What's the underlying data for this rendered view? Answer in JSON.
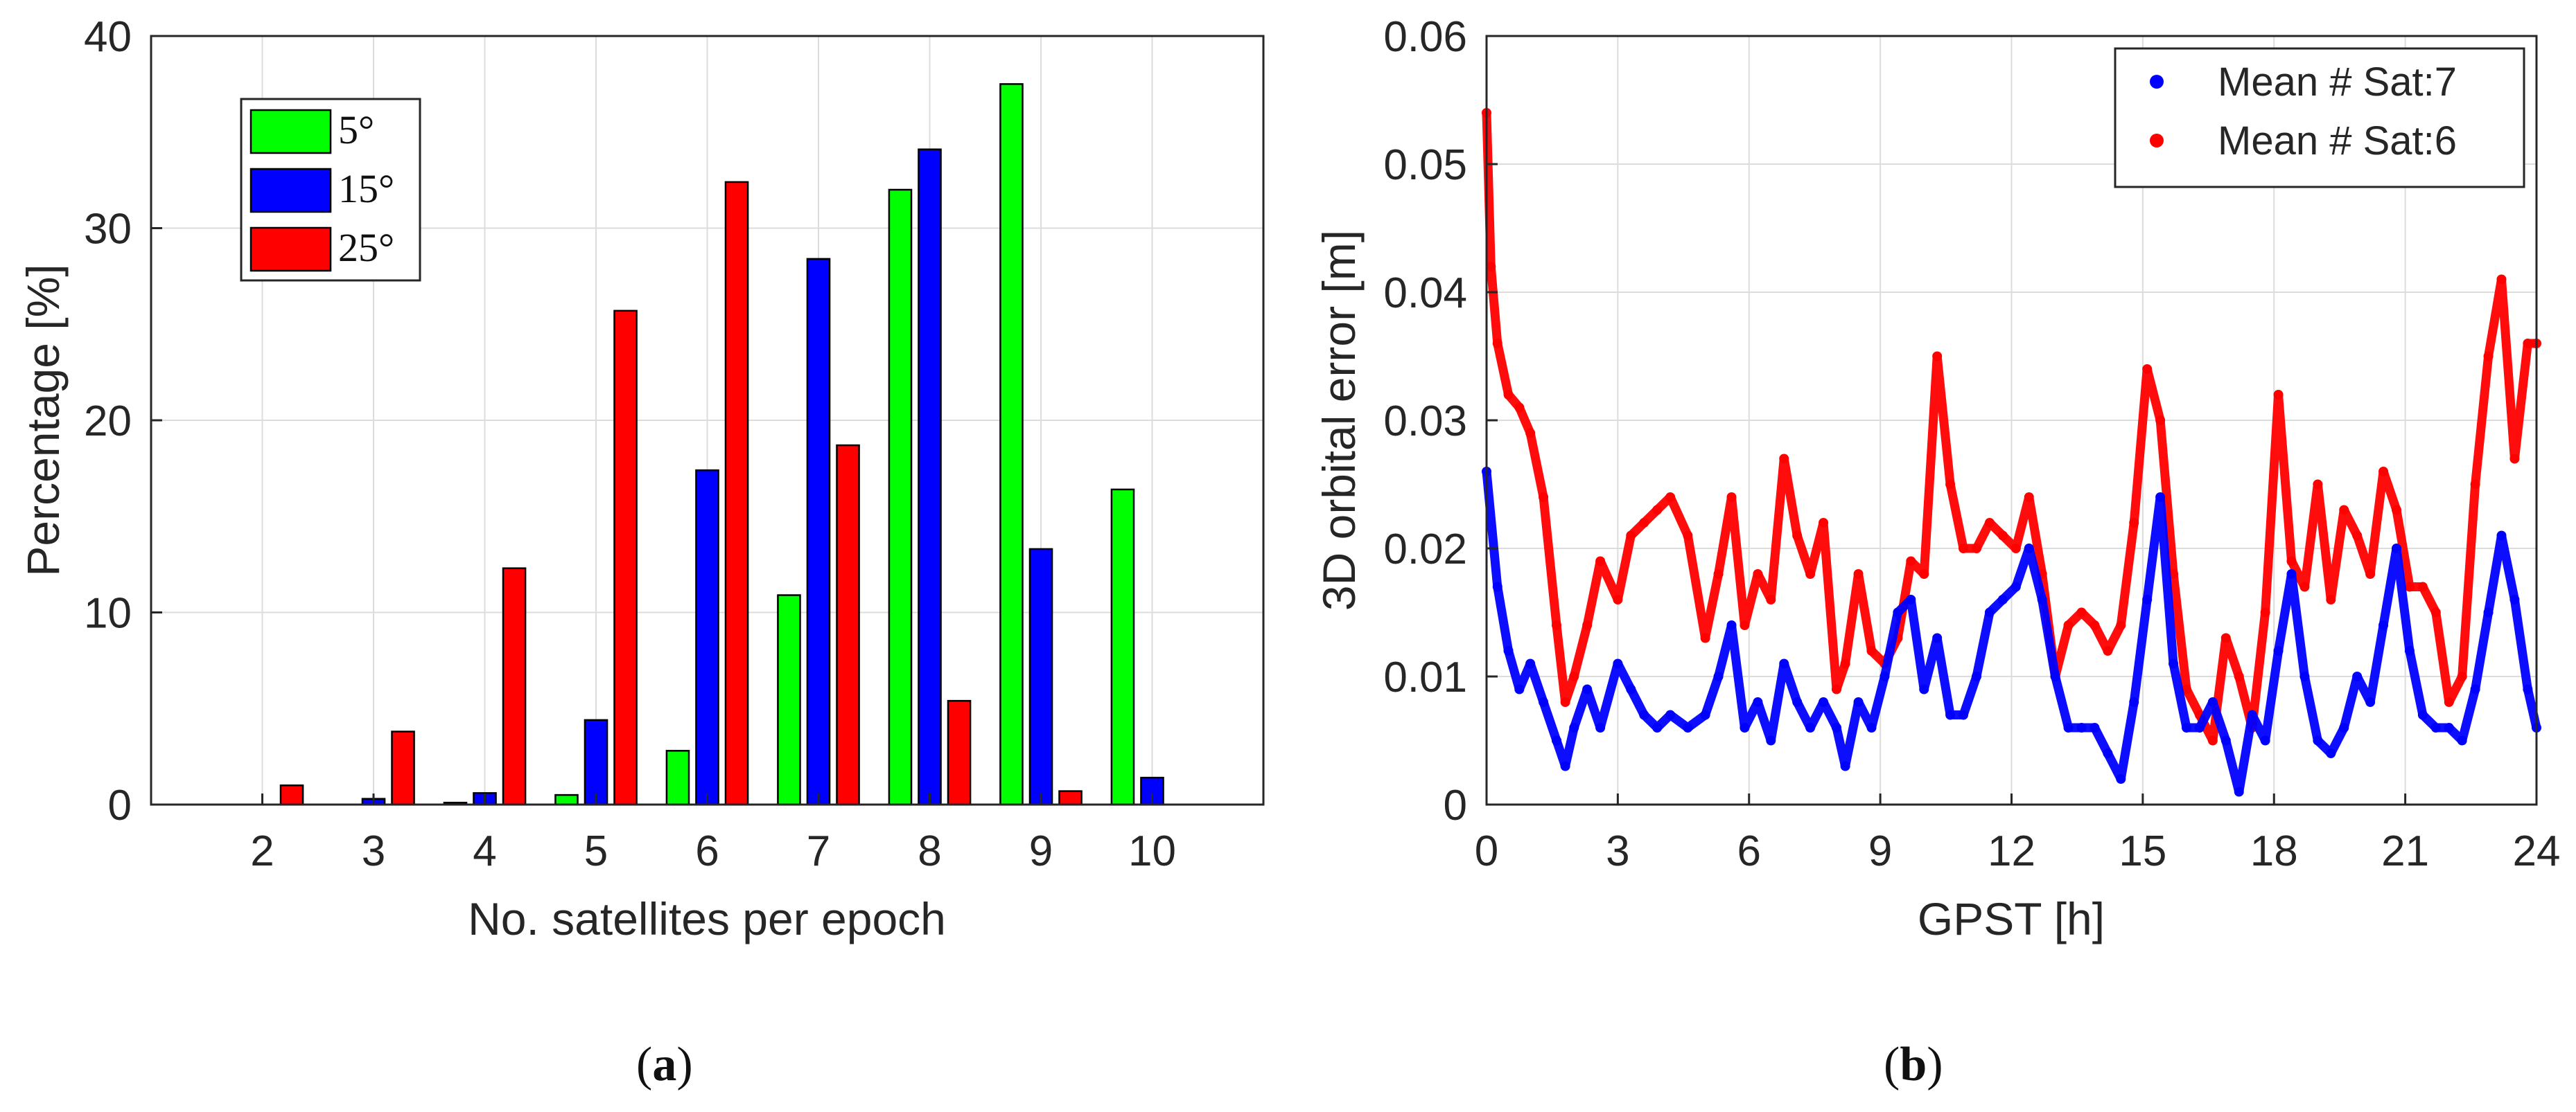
{
  "chart_data": [
    {
      "type": "bar",
      "categories": [
        "2",
        "3",
        "4",
        "5",
        "6",
        "7",
        "8",
        "9",
        "10"
      ],
      "series": [
        {
          "name": "5°",
          "color": "#00ff00",
          "values": [
            0,
            0,
            0.1,
            0.5,
            2.8,
            10.9,
            32.0,
            37.5,
            16.4
          ]
        },
        {
          "name": "15°",
          "color": "#0000ff",
          "values": [
            0,
            0.3,
            0.6,
            4.4,
            17.4,
            28.4,
            34.1,
            13.3,
            1.4
          ]
        },
        {
          "name": "25°",
          "color": "#ff0000",
          "values": [
            1.0,
            3.8,
            12.3,
            25.7,
            32.4,
            18.7,
            5.4,
            0.7,
            0
          ]
        }
      ],
      "xlabel": "No. satellites per epoch",
      "ylabel": "Percentage [%]",
      "ylim": [
        0,
        40
      ],
      "yticks": [
        "0",
        "10",
        "20",
        "30",
        "40"
      ],
      "grid": true,
      "legend": "top-left",
      "panel_label": {
        "open": "(",
        "letter": "a",
        "close": ")"
      }
    },
    {
      "type": "scatter",
      "xlabel": "GPST [h]",
      "ylabel": "3D orbital error [m]",
      "xlim": [
        0,
        24
      ],
      "ylim": [
        0,
        0.06
      ],
      "xticks": [
        "0",
        "3",
        "6",
        "9",
        "12",
        "15",
        "18",
        "21",
        "24"
      ],
      "yticks": [
        "0",
        "0.01",
        "0.02",
        "0.03",
        "0.04",
        "0.05",
        "0.06"
      ],
      "grid": true,
      "legend": "top-right",
      "series": [
        {
          "name": "Mean # Sat:7",
          "color": "#0000ff",
          "x": [
            0,
            0.25,
            0.5,
            0.75,
            1.0,
            1.3,
            1.6,
            1.8,
            2.0,
            2.3,
            2.6,
            3.0,
            3.3,
            3.6,
            3.9,
            4.2,
            4.6,
            5.0,
            5.3,
            5.6,
            5.9,
            6.2,
            6.5,
            6.8,
            7.1,
            7.4,
            7.7,
            8.0,
            8.2,
            8.5,
            8.8,
            9.1,
            9.4,
            9.7,
            10.0,
            10.3,
            10.6,
            10.9,
            11.2,
            11.5,
            11.8,
            12.1,
            12.4,
            12.7,
            13.0,
            13.3,
            13.6,
            13.9,
            14.2,
            14.5,
            14.8,
            15.1,
            15.4,
            15.7,
            16.0,
            16.3,
            16.6,
            16.9,
            17.2,
            17.5,
            17.8,
            18.1,
            18.4,
            18.7,
            19.0,
            19.3,
            19.6,
            19.9,
            20.2,
            20.5,
            20.8,
            21.1,
            21.4,
            21.7,
            22.0,
            22.3,
            22.6,
            22.9,
            23.2,
            23.5,
            23.8,
            24.0
          ],
          "y": [
            0.026,
            0.017,
            0.012,
            0.009,
            0.011,
            0.008,
            0.005,
            0.003,
            0.006,
            0.009,
            0.006,
            0.011,
            0.009,
            0.007,
            0.006,
            0.007,
            0.006,
            0.007,
            0.01,
            0.014,
            0.006,
            0.008,
            0.005,
            0.011,
            0.008,
            0.006,
            0.008,
            0.006,
            0.003,
            0.008,
            0.006,
            0.01,
            0.015,
            0.016,
            0.009,
            0.013,
            0.007,
            0.007,
            0.01,
            0.015,
            0.016,
            0.017,
            0.02,
            0.016,
            0.01,
            0.006,
            0.006,
            0.006,
            0.004,
            0.002,
            0.008,
            0.016,
            0.024,
            0.011,
            0.006,
            0.006,
            0.008,
            0.005,
            0.001,
            0.007,
            0.005,
            0.012,
            0.018,
            0.01,
            0.005,
            0.004,
            0.006,
            0.01,
            0.008,
            0.014,
            0.02,
            0.012,
            0.007,
            0.006,
            0.006,
            0.005,
            0.009,
            0.015,
            0.021,
            0.016,
            0.009,
            0.006
          ]
        },
        {
          "name": "Mean # Sat:6",
          "color": "#ff0000",
          "x": [
            0,
            0.1,
            0.25,
            0.5,
            0.75,
            1.0,
            1.3,
            1.6,
            1.8,
            2.0,
            2.3,
            2.6,
            3.0,
            3.3,
            3.6,
            3.9,
            4.2,
            4.6,
            5.0,
            5.3,
            5.6,
            5.9,
            6.2,
            6.5,
            6.8,
            7.1,
            7.4,
            7.7,
            8.0,
            8.2,
            8.5,
            8.8,
            9.1,
            9.4,
            9.7,
            10.0,
            10.3,
            10.6,
            10.9,
            11.2,
            11.5,
            11.8,
            12.1,
            12.4,
            12.7,
            13.0,
            13.3,
            13.6,
            13.9,
            14.2,
            14.5,
            14.8,
            15.1,
            15.4,
            15.7,
            16.0,
            16.3,
            16.6,
            16.9,
            17.2,
            17.5,
            17.8,
            18.1,
            18.4,
            18.7,
            19.0,
            19.3,
            19.6,
            19.9,
            20.2,
            20.5,
            20.8,
            21.1,
            21.4,
            21.7,
            22.0,
            22.3,
            22.6,
            22.9,
            23.2,
            23.5,
            23.8,
            24.0
          ],
          "y": [
            0.054,
            0.042,
            0.036,
            0.032,
            0.031,
            0.029,
            0.024,
            0.014,
            0.008,
            0.01,
            0.014,
            0.019,
            0.016,
            0.021,
            0.022,
            0.023,
            0.024,
            0.021,
            0.013,
            0.018,
            0.024,
            0.014,
            0.018,
            0.016,
            0.027,
            0.021,
            0.018,
            0.022,
            0.009,
            0.011,
            0.018,
            0.012,
            0.011,
            0.013,
            0.019,
            0.018,
            0.035,
            0.025,
            0.02,
            0.02,
            0.022,
            0.021,
            0.02,
            0.024,
            0.018,
            0.01,
            0.014,
            0.015,
            0.014,
            0.012,
            0.014,
            0.022,
            0.034,
            0.03,
            0.018,
            0.009,
            0.007,
            0.005,
            0.013,
            0.01,
            0.006,
            0.015,
            0.032,
            0.019,
            0.017,
            0.025,
            0.016,
            0.023,
            0.021,
            0.018,
            0.026,
            0.023,
            0.017,
            0.017,
            0.015,
            0.008,
            0.01,
            0.025,
            0.035,
            0.041,
            0.027,
            0.036,
            0.036
          ]
        }
      ],
      "panel_label": {
        "open": "(",
        "letter": "b",
        "close": ")"
      }
    }
  ]
}
